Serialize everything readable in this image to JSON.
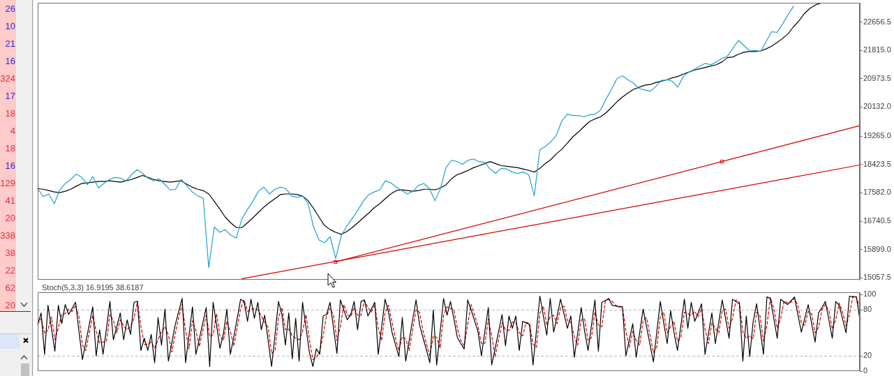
{
  "chart_data": [
    {
      "type": "other",
      "annotations": [
        "26",
        "10",
        "21",
        "16",
        "324",
        "17",
        "18",
        "4",
        "18",
        "16",
        "129",
        "41",
        "20",
        "338",
        "38",
        "22",
        "62",
        "20"
      ],
      "colors": [
        "#2c2cd6",
        "#2c2cd6",
        "#2c2cd6",
        "#2c2cd6",
        "#e0303a",
        "#2c2cd6",
        "#e0303a",
        "#e0303a",
        "#e0303a",
        "#2c2cd6",
        "#e0303a",
        "#e0303a",
        "#e0303a",
        "#e0303a",
        "#e0303a",
        "#e0303a",
        "#e0303a",
        "#e0303a"
      ]
    },
    {
      "type": "line",
      "categories": [
        null,
        null,
        null,
        null,
        null,
        null,
        null,
        null,
        null,
        null,
        null,
        null,
        null,
        null,
        null,
        null,
        null,
        null,
        null,
        null,
        null,
        null,
        null,
        null,
        null,
        null,
        null,
        null,
        null,
        null,
        null,
        null,
        null,
        null,
        null,
        null,
        null,
        null,
        null,
        null,
        null,
        null,
        null,
        null,
        null,
        null,
        null,
        null,
        null,
        null,
        null,
        null,
        null,
        null,
        null,
        null,
        null,
        null,
        null,
        null,
        null,
        null,
        null,
        null,
        null,
        null,
        null,
        null,
        null,
        null,
        null,
        null,
        null,
        null,
        null,
        null,
        null,
        null,
        null,
        null,
        null,
        null,
        null,
        null,
        null,
        null,
        null,
        null,
        null,
        null,
        null,
        null,
        null,
        null,
        null,
        null,
        null,
        null,
        null,
        null,
        null,
        null,
        null,
        null,
        null,
        null,
        null,
        null,
        null,
        null,
        null,
        null,
        null,
        null,
        null,
        null,
        null,
        null,
        null,
        null,
        null,
        null,
        null,
        null,
        null,
        null,
        null,
        null,
        null,
        null,
        null,
        null,
        null,
        null,
        null,
        null,
        null,
        null,
        null,
        null,
        null,
        null,
        null,
        null,
        null,
        null,
        null,
        null,
        null,
        null
      ],
      "series": [
        {
          "color": "#1fa2cf",
          "values": [
            17710,
            17470,
            17550,
            17260,
            17670,
            17860,
            17980,
            18140,
            18040,
            17820,
            18060,
            17730,
            17860,
            17980,
            18040,
            18020,
            17940,
            18120,
            18270,
            18160,
            18020,
            17940,
            18000,
            17840,
            17670,
            17690,
            17980,
            17800,
            17610,
            17490,
            17430,
            15360,
            16570,
            16410,
            16490,
            16320,
            16240,
            16800,
            17080,
            17330,
            17630,
            17750,
            17550,
            17690,
            17750,
            17710,
            17490,
            17450,
            17490,
            17260,
            16570,
            16180,
            16100,
            16280,
            15630,
            16300,
            16590,
            16820,
            17060,
            17330,
            17530,
            17610,
            17670,
            17940,
            17880,
            17750,
            17650,
            17550,
            17630,
            17800,
            17860,
            17710,
            17350,
            17710,
            18330,
            18550,
            18510,
            18430,
            18550,
            18590,
            18510,
            18490,
            18290,
            18160,
            18310,
            18290,
            18200,
            18160,
            18200,
            18120,
            17490,
            18860,
            18960,
            19100,
            19290,
            19720,
            19920,
            19880,
            19880,
            19840,
            19900,
            19920,
            20040,
            20370,
            20660,
            20980,
            21060,
            20940,
            20840,
            20680,
            20640,
            20600,
            20740,
            20920,
            20940,
            20900,
            20720,
            21040,
            21170,
            21250,
            21350,
            21430,
            21390,
            21470,
            21580,
            21640,
            21880,
            22110,
            21960,
            21800,
            21820,
            21780,
            22070,
            22370,
            22350,
            22600,
            22880,
            23130,
            null,
            null,
            null,
            null,
            null,
            null,
            null,
            null,
            null,
            null,
            null,
            null
          ]
        },
        {
          "color": "#000000",
          "values": [
            17710,
            17690,
            17650,
            17610,
            17590,
            17630,
            17690,
            17780,
            17860,
            17880,
            17900,
            17920,
            17920,
            17940,
            17920,
            17900,
            17940,
            17980,
            18040,
            18100,
            18040,
            17980,
            17940,
            17920,
            17900,
            17920,
            17940,
            17840,
            17750,
            17690,
            17650,
            17550,
            17330,
            17100,
            16860,
            16690,
            16550,
            16550,
            16690,
            16840,
            17000,
            17160,
            17290,
            17410,
            17530,
            17550,
            17550,
            17530,
            17490,
            17350,
            17120,
            16860,
            16610,
            16490,
            16410,
            16350,
            16430,
            16550,
            16690,
            16840,
            16980,
            17140,
            17260,
            17410,
            17550,
            17650,
            17670,
            17650,
            17630,
            17650,
            17690,
            17690,
            17670,
            17730,
            17820,
            18000,
            18120,
            18180,
            18250,
            18330,
            18390,
            18450,
            18510,
            18450,
            18390,
            18370,
            18350,
            18330,
            18290,
            18250,
            18200,
            18310,
            18450,
            18570,
            18740,
            18880,
            19060,
            19250,
            19390,
            19550,
            19700,
            19780,
            19840,
            19960,
            20120,
            20290,
            20430,
            20550,
            20660,
            20720,
            20780,
            20800,
            20860,
            20900,
            20940,
            21000,
            21040,
            21110,
            21170,
            21230,
            21270,
            21310,
            21350,
            21390,
            21470,
            21600,
            21620,
            21700,
            21760,
            21780,
            21780,
            21800,
            21860,
            21940,
            22050,
            22170,
            22310,
            22520,
            22700,
            22920,
            23070,
            23170,
            23220,
            null,
            null,
            null,
            null,
            null,
            null,
            null
          ]
        },
        {
          "color": "#d40000",
          "values": [
            null,
            null,
            null,
            null,
            null,
            null,
            null,
            null,
            null,
            null,
            null,
            null,
            null,
            null,
            null,
            null,
            null,
            null,
            null,
            null,
            null,
            null,
            null,
            null,
            null,
            null,
            null,
            null,
            null,
            null,
            null,
            null,
            null,
            null,
            null,
            null,
            null,
            15030,
            null,
            null,
            null,
            null,
            null,
            null,
            null,
            null,
            null,
            null,
            null,
            null,
            null,
            null,
            null,
            null,
            null,
            null,
            null,
            null,
            null,
            null,
            null,
            null,
            null,
            null,
            null,
            null,
            null,
            null,
            null,
            null,
            null,
            null,
            null,
            null,
            null,
            null,
            null,
            null,
            null,
            null,
            null,
            null,
            null,
            null,
            null,
            null,
            null,
            null,
            null,
            null,
            null,
            null,
            null,
            null,
            null,
            null,
            null,
            null,
            null,
            null,
            null,
            null,
            null,
            null,
            null,
            null,
            null,
            null,
            null,
            null,
            null,
            null,
            null,
            null,
            null,
            null,
            null,
            null,
            null,
            null,
            null,
            null,
            null,
            null,
            null,
            null,
            null,
            null,
            null,
            null,
            null,
            null,
            null,
            null,
            null,
            null,
            null,
            null,
            null,
            null,
            null,
            null,
            null,
            null,
            null,
            null,
            null,
            null,
            null,
            18410
          ]
        },
        {
          "color": "#d40000",
          "values": [
            null,
            null,
            null,
            null,
            null,
            null,
            null,
            null,
            null,
            null,
            null,
            null,
            null,
            null,
            null,
            null,
            null,
            null,
            null,
            null,
            null,
            null,
            null,
            null,
            null,
            null,
            null,
            null,
            null,
            null,
            null,
            null,
            null,
            null,
            null,
            null,
            null,
            null,
            null,
            null,
            null,
            null,
            null,
            null,
            null,
            null,
            null,
            null,
            null,
            null,
            null,
            null,
            null,
            null,
            15530,
            null,
            null,
            null,
            null,
            null,
            null,
            null,
            null,
            null,
            null,
            null,
            null,
            null,
            null,
            null,
            null,
            null,
            null,
            null,
            null,
            null,
            null,
            null,
            null,
            null,
            null,
            null,
            null,
            null,
            null,
            null,
            null,
            null,
            null,
            null,
            null,
            null,
            null,
            null,
            null,
            null,
            null,
            null,
            null,
            null,
            null,
            null,
            null,
            null,
            null,
            null,
            null,
            null,
            null,
            null,
            null,
            null,
            null,
            null,
            null,
            null,
            null,
            null,
            null,
            null,
            null,
            null,
            null,
            null,
            18510,
            null,
            null,
            null,
            null,
            null,
            null,
            null,
            null,
            null,
            null,
            null,
            null,
            null,
            null,
            null,
            null,
            null,
            null,
            null,
            null,
            null,
            null,
            null,
            null,
            19580
          ]
        },
        {
          "type": "scatter",
          "color": "#d40000",
          "marker": "square",
          "values": [
            null,
            null,
            null,
            null,
            null,
            null,
            null,
            null,
            null,
            null,
            null,
            null,
            null,
            null,
            null,
            null,
            null,
            null,
            null,
            null,
            null,
            null,
            null,
            null,
            null,
            null,
            null,
            null,
            null,
            null,
            null,
            null,
            null,
            null,
            null,
            null,
            null,
            null,
            null,
            null,
            null,
            null,
            null,
            null,
            null,
            null,
            null,
            null,
            null,
            null,
            null,
            null,
            null,
            null,
            15530,
            null,
            null,
            null,
            null,
            null,
            null,
            null,
            null,
            null,
            null,
            null,
            null,
            null,
            null,
            null,
            null,
            null,
            null,
            null,
            null,
            null,
            null,
            null,
            null,
            null,
            null,
            null,
            null,
            null,
            null,
            null,
            null,
            null,
            null,
            null,
            null,
            null,
            null,
            null,
            null,
            null,
            null,
            null,
            null,
            null,
            null,
            null,
            null,
            null,
            null,
            null,
            null,
            null,
            null,
            null,
            null,
            null,
            null,
            null,
            null,
            null,
            null,
            null,
            null,
            null,
            null,
            null,
            null,
            null,
            18510,
            null,
            null,
            null,
            null,
            null,
            null,
            null,
            null,
            null,
            null,
            null,
            null,
            null,
            null,
            null,
            null,
            null,
            null,
            null,
            null,
            null,
            null,
            null,
            null,
            null
          ]
        }
      ],
      "ylim": [
        15000,
        23230
      ],
      "yticks": [
        {
          "value": 15057.5,
          "label": "15057.5"
        },
        {
          "value": 15899,
          "label": "15899.0"
        },
        {
          "value": 16740.5,
          "label": "16740.5"
        },
        {
          "value": 17582,
          "label": "17582.0"
        },
        {
          "value": 18423.5,
          "label": "18423.5"
        },
        {
          "value": 19265,
          "label": "19265.0"
        },
        {
          "value": 20132,
          "label": "20132.0"
        },
        {
          "value": 20973.5,
          "label": "20973.5"
        },
        {
          "value": 21815,
          "label": "21815.0"
        },
        {
          "value": 22656.5,
          "label": "22656.5"
        }
      ],
      "tick_labels": "y"
    },
    {
      "type": "line",
      "title": "Stoch(5,3,3) 16.9195 38.6187",
      "categories": [
        null,
        null,
        null,
        null,
        null,
        null,
        null,
        null,
        null,
        null,
        null,
        null,
        null,
        null,
        null,
        null,
        null,
        null,
        null,
        null,
        null,
        null,
        null,
        null,
        null,
        null,
        null,
        null,
        null,
        null,
        null,
        null,
        null,
        null,
        null,
        null,
        null,
        null,
        null,
        null,
        null,
        null,
        null,
        null,
        null,
        null,
        null,
        null,
        null,
        null,
        null,
        null,
        null,
        null,
        null,
        null,
        null,
        null,
        null,
        null,
        null,
        null,
        null,
        null,
        null,
        null,
        null,
        null,
        null,
        null,
        null,
        null,
        null,
        null,
        null,
        null,
        null,
        null,
        null,
        null,
        null,
        null,
        null,
        null,
        null,
        null,
        null,
        null,
        null,
        null,
        null,
        null,
        null,
        null,
        null,
        null,
        null,
        null,
        null,
        null,
        null,
        null,
        null,
        null,
        null,
        null,
        null,
        null,
        null,
        null,
        null,
        null,
        null,
        null,
        null,
        null,
        null,
        null,
        null,
        null,
        null,
        null,
        null,
        null,
        null,
        null,
        null,
        null,
        null,
        null,
        null,
        null,
        null,
        null,
        null,
        null,
        null,
        null,
        null,
        null,
        null,
        null,
        null,
        null,
        null,
        null,
        null,
        null,
        null,
        null,
        null,
        null,
        null,
        null,
        null,
        null,
        null,
        null,
        null,
        null,
        null,
        null,
        null,
        null,
        null,
        null,
        null,
        null,
        null,
        null,
        null,
        null,
        null,
        null,
        null,
        null,
        null,
        null,
        null,
        null,
        null,
        null,
        null,
        null,
        null,
        null,
        null,
        null,
        null,
        null,
        null,
        null,
        null,
        null,
        null,
        null,
        null,
        null,
        null,
        null,
        null,
        null,
        null,
        null,
        null,
        null,
        null,
        null,
        null,
        null,
        null,
        null,
        null,
        null,
        null,
        null,
        null,
        null,
        null,
        null,
        null,
        null,
        null,
        null,
        null,
        null,
        null,
        null,
        null,
        null,
        null,
        null,
        null,
        null,
        null,
        null,
        null,
        null,
        null,
        null
      ],
      "series": [
        {
          "color": "#000000",
          "values": [
            61,
            76,
            22,
            86,
            56,
            26,
            86,
            62,
            87,
            74,
            82,
            90,
            52,
            15,
            38,
            61,
            84,
            20,
            54,
            22,
            56,
            91,
            41,
            58,
            76,
            41,
            67,
            48,
            90,
            91,
            27,
            43,
            27,
            48,
            11,
            70,
            34,
            81,
            13,
            37,
            61,
            78,
            95,
            11,
            47,
            84,
            22,
            42,
            63,
            83,
            6,
            90,
            60,
            30,
            49,
            81,
            22,
            44,
            69,
            94,
            91,
            65,
            94,
            69,
            90,
            54,
            73,
            40,
            6,
            48,
            91,
            74,
            34,
            76,
            16,
            69,
            13,
            90,
            57,
            24,
            6,
            29,
            22,
            72,
            74,
            90,
            56,
            23,
            93,
            80,
            67,
            74,
            91,
            54,
            91,
            93,
            72,
            81,
            90,
            22,
            58,
            94,
            77,
            51,
            35,
            19,
            70,
            13,
            40,
            67,
            93,
            61,
            44,
            28,
            11,
            80,
            8,
            51,
            95,
            73,
            91,
            68,
            44,
            36,
            29,
            93,
            80,
            66,
            52,
            20,
            52,
            83,
            8,
            30,
            52,
            74,
            33,
            72,
            56,
            72,
            27,
            65,
            63,
            61,
            8,
            53,
            98,
            72,
            47,
            95,
            51,
            72,
            94,
            75,
            56,
            72,
            18,
            50,
            83,
            52,
            27,
            60,
            93,
            26,
            90,
            92,
            95,
            86,
            85,
            84,
            84,
            20,
            41,
            62,
            18,
            50,
            81,
            58,
            35,
            12,
            52,
            91,
            63,
            36,
            79,
            50,
            27,
            60,
            94,
            56,
            90,
            65,
            76,
            88,
            22,
            49,
            76,
            36,
            64,
            93,
            68,
            43,
            94,
            91,
            88,
            13,
            72,
            19,
            65,
            88,
            55,
            22,
            97,
            95,
            69,
            43,
            94,
            90,
            87,
            92,
            97,
            74,
            51,
            69,
            87,
            62,
            38,
            76,
            83,
            91,
            67,
            43,
            91,
            86,
            68,
            50,
            98,
            97,
            97,
            68
          ]
        },
        {
          "color": "#d40000",
          "line_style": "dashed",
          "values": [
            61,
            69,
            49,
            54,
            71,
            41,
            56,
            74,
            75,
            81,
            78,
            86,
            71,
            34,
            27,
            50,
            73,
            52,
            37,
            38,
            39,
            74,
            66,
            50,
            67,
            59,
            54,
            58,
            69,
            91,
            59,
            35,
            35,
            38,
            30,
            41,
            52,
            58,
            47,
            25,
            49,
            70,
            87,
            53,
            29,
            66,
            53,
            32,
            53,
            73,
            45,
            48,
            75,
            45,
            40,
            65,
            52,
            33,
            57,
            82,
            93,
            78,
            80,
            82,
            80,
            72,
            64,
            57,
            23,
            27,
            70,
            83,
            54,
            55,
            46,
            43,
            41,
            52,
            74,
            41,
            15,
            18,
            26,
            47,
            73,
            82,
            73,
            40,
            58,
            87,
            74,
            71,
            83,
            73,
            73,
            92,
            83,
            77,
            86,
            56,
            40,
            76,
            86,
            64,
            43,
            27,
            45,
            42,
            27,
            54,
            80,
            77,
            53,
            36,
            20,
            46,
            44,
            30,
            73,
            84,
            82,
            80,
            56,
            40,
            33,
            61,
            87,
            73,
            59,
            36,
            36,
            68,
            46,
            19,
            41,
            63,
            54,
            53,
            64,
            64,
            50,
            46,
            64,
            62,
            35,
            31,
            76,
            85,
            60,
            71,
            73,
            62,
            83,
            85,
            66,
            64,
            45,
            34,
            67,
            68,
            40,
            44,
            77,
            60,
            58,
            91,
            94,
            91,
            86,
            85,
            84,
            52,
            31,
            52,
            40,
            34,
            66,
            70,
            47,
            24,
            32,
            72,
            77,
            50,
            58,
            65,
            39,
            44,
            77,
            75,
            73,
            78,
            71,
            82,
            55,
            36,
            63,
            56,
            50,
            79,
            81,
            56,
            69,
            93,
            90,
            51,
            43,
            46,
            42,
            77,
            72,
            39,
            60,
            96,
            82,
            56,
            69,
            92,
            89,
            90,
            95,
            86,
            63,
            60,
            78,
            75,
            50,
            57,
            80,
            87,
            79,
            55,
            67,
            89,
            77,
            59,
            74,
            98,
            97,
            83
          ]
        }
      ],
      "ylim": [
        0,
        103
      ],
      "yticks": [
        0,
        20,
        80,
        100
      ],
      "ref_lines": [
        {
          "axis": "y",
          "value": 80,
          "color": "#b4b4b4",
          "line_style": "dashed"
        },
        {
          "axis": "y",
          "value": 20,
          "color": "#b4b4b4",
          "line_style": "dashed"
        }
      ],
      "tick_labels": "y"
    }
  ]
}
